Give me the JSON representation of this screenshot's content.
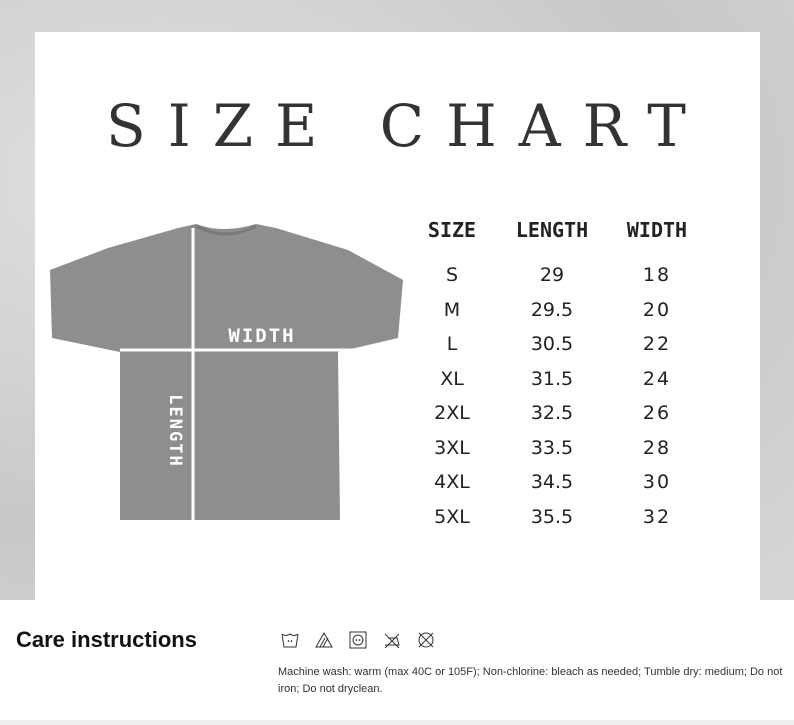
{
  "title": "SIZE CHART",
  "diagram": {
    "width_label": "WIDTH",
    "length_label": "LENGTH",
    "shirt_color": "#8e8e8e"
  },
  "table": {
    "headers": [
      "SIZE",
      "LENGTH",
      "WIDTH"
    ],
    "rows": [
      [
        "S",
        "29",
        "18"
      ],
      [
        "M",
        "29.5",
        "20"
      ],
      [
        "L",
        "30.5",
        "22"
      ],
      [
        "XL",
        "31.5",
        "24"
      ],
      [
        "2XL",
        "32.5",
        "26"
      ],
      [
        "3XL",
        "33.5",
        "28"
      ],
      [
        "4XL",
        "34.5",
        "30"
      ],
      [
        "5XL",
        "35.5",
        "32"
      ]
    ]
  },
  "care": {
    "title": "Care instructions",
    "icons": [
      "wash-warm-icon",
      "non-chlorine-bleach-icon",
      "tumble-dry-medium-icon",
      "do-not-iron-icon",
      "do-not-dryclean-icon"
    ],
    "text": "Machine wash: warm (max 40C or 105F); Non-chlorine: bleach as needed; Tumble dry: medium; Do not iron; Do not dryclean."
  }
}
